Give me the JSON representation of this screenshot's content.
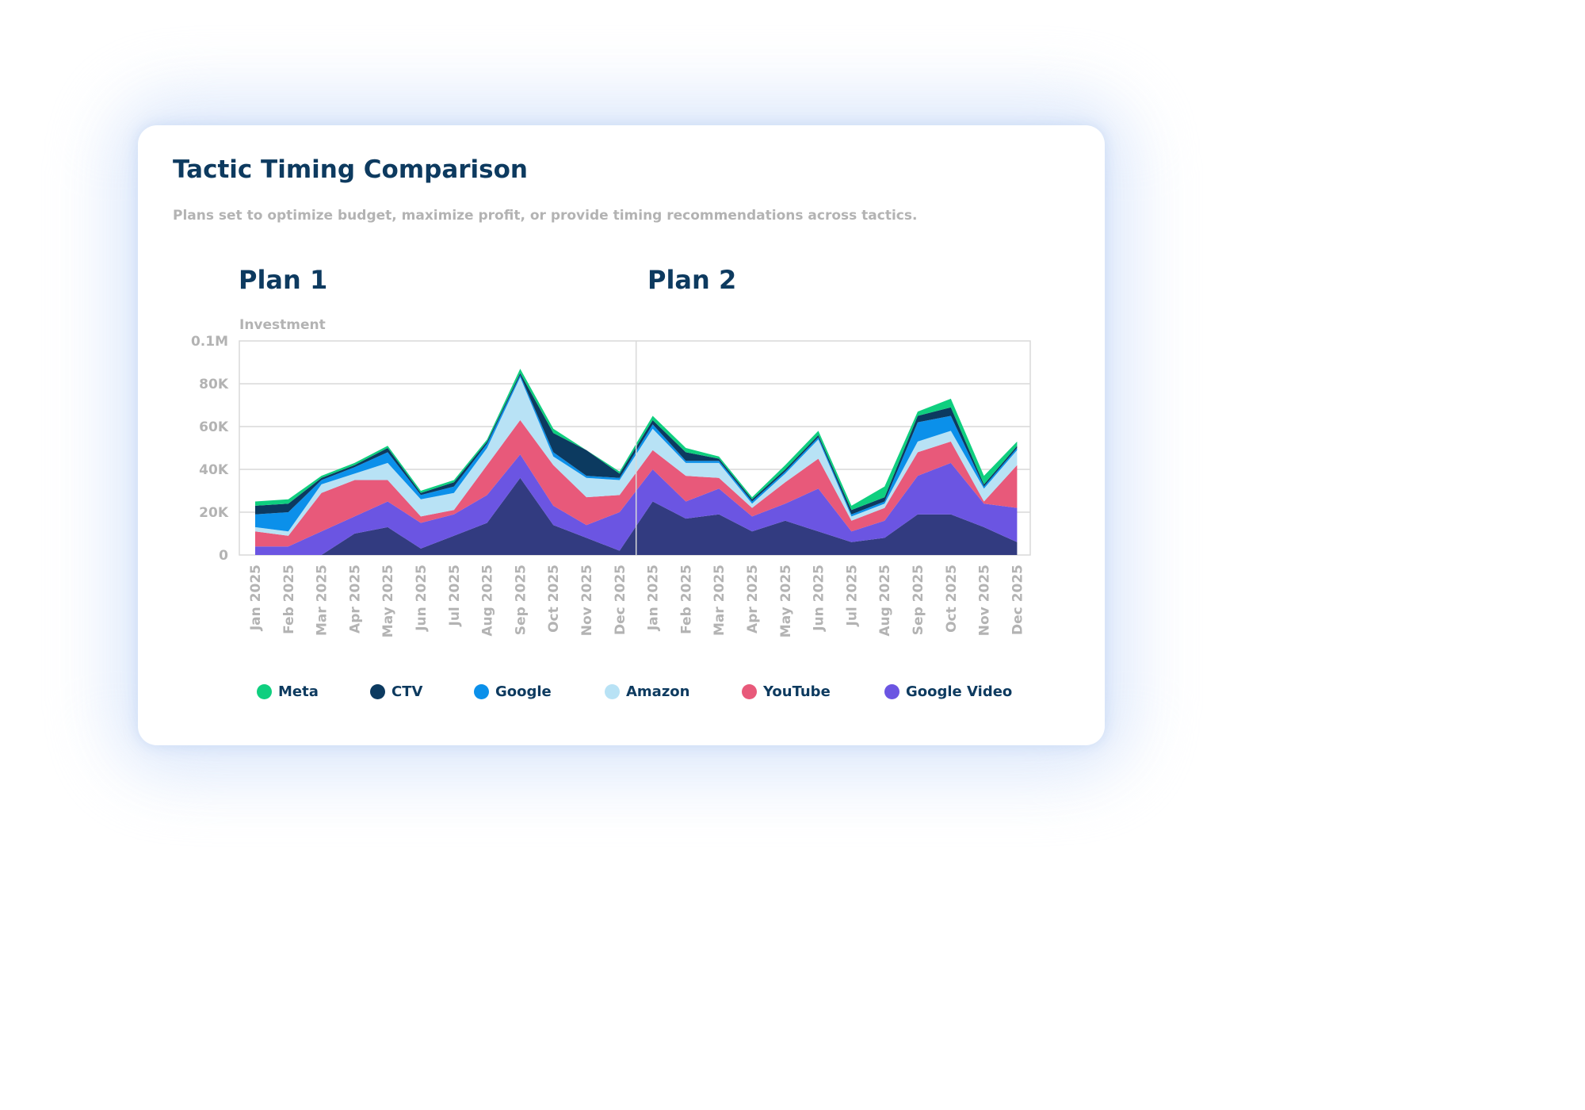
{
  "card": {
    "title": "Tactic Timing Comparison",
    "subtitle": "Plans set to optimize budget, maximize profit, or provide timing recommendations across tactics."
  },
  "colors": {
    "meta": "#0fcf7f",
    "ctv": "#0c3a60",
    "google": "#0b90ea",
    "amazon": "#b8e2f5",
    "youtube": "#e8597a",
    "google_video": "#6b55e2",
    "base": "#323b80",
    "title": "#0d3a5f",
    "muted": "#b3b3b3",
    "grid": "#d9d9d9"
  },
  "chart_data": {
    "type": "area",
    "stacked": true,
    "panels": [
      "Plan 1",
      "Plan 2"
    ],
    "ylabel": "Investment",
    "ylim": [
      0,
      100000
    ],
    "yticks": [
      0,
      20000,
      40000,
      60000,
      80000,
      100000
    ],
    "ytick_labels": [
      "0",
      "20K",
      "40K",
      "60K",
      "80K",
      "0.1M"
    ],
    "grid": true,
    "legend_position": "bottom",
    "categories": [
      "Jan 2025",
      "Feb 2025",
      "Mar 2025",
      "Apr 2025",
      "May 2025",
      "Jun 2025",
      "Jul 2025",
      "Aug 2025",
      "Sep 2025",
      "Oct 2025",
      "Nov 2025",
      "Dec 2025",
      "Jan 2025",
      "Feb 2025",
      "Mar 2025",
      "Apr 2025",
      "May 2025",
      "Jun 2025",
      "Jul 2025",
      "Aug 2025",
      "Sep 2025",
      "Oct 2025",
      "Nov 2025",
      "Dec 2025"
    ],
    "base_layer": [
      0,
      0,
      0,
      10000,
      13000,
      3000,
      9000,
      15000,
      36000,
      14000,
      8000,
      2000,
      25000,
      17000,
      19000,
      11000,
      16000,
      11000,
      6000,
      8000,
      19000,
      19000,
      13000,
      6000
    ],
    "series": [
      {
        "key": "google_video",
        "name": "Google Video",
        "values": [
          4000,
          4000,
          11000,
          8000,
          12000,
          12000,
          10000,
          13000,
          11000,
          9000,
          6000,
          18000,
          15000,
          8000,
          12000,
          7000,
          8000,
          20000,
          5000,
          8000,
          18000,
          24000,
          11000,
          16000
        ]
      },
      {
        "key": "youtube",
        "name": "YouTube",
        "values": [
          7000,
          5000,
          18000,
          17000,
          10000,
          3000,
          2000,
          14000,
          16000,
          19000,
          13000,
          8000,
          9000,
          12000,
          5000,
          4000,
          10000,
          14000,
          5000,
          6000,
          11000,
          10000,
          1000,
          20000
        ]
      },
      {
        "key": "amazon",
        "name": "Amazon",
        "values": [
          2000,
          2000,
          4000,
          3000,
          8000,
          8000,
          8000,
          8000,
          20000,
          4000,
          9000,
          7000,
          10000,
          6000,
          7000,
          2000,
          4000,
          9000,
          2000,
          2000,
          5000,
          5000,
          6000,
          7000
        ]
      },
      {
        "key": "google",
        "name": "Google",
        "values": [
          6000,
          9000,
          2000,
          3000,
          5000,
          2000,
          3000,
          2000,
          1000,
          2000,
          1000,
          1000,
          2000,
          1000,
          1000,
          1000,
          1000,
          1000,
          1000,
          1000,
          9000,
          7000,
          1000,
          1000
        ]
      },
      {
        "key": "ctv",
        "name": "CTV",
        "values": [
          4000,
          4000,
          1000,
          1000,
          2000,
          1000,
          2000,
          1000,
          1000,
          9000,
          12000,
          2000,
          2000,
          4000,
          1000,
          1000,
          1000,
          1000,
          2000,
          2000,
          3000,
          4000,
          1000,
          1000
        ]
      },
      {
        "key": "meta",
        "name": "Meta",
        "values": [
          2000,
          2000,
          1000,
          1000,
          1000,
          1000,
          1000,
          1000,
          2000,
          2000,
          0,
          1000,
          2000,
          2000,
          1000,
          1000,
          2000,
          2000,
          2000,
          5000,
          2000,
          4000,
          4000,
          2000
        ]
      }
    ]
  },
  "legend": [
    {
      "key": "meta",
      "label": "Meta"
    },
    {
      "key": "ctv",
      "label": "CTV"
    },
    {
      "key": "google",
      "label": "Google"
    },
    {
      "key": "amazon",
      "label": "Amazon"
    },
    {
      "key": "youtube",
      "label": "YouTube"
    },
    {
      "key": "google_video",
      "label": "Google Video"
    }
  ]
}
